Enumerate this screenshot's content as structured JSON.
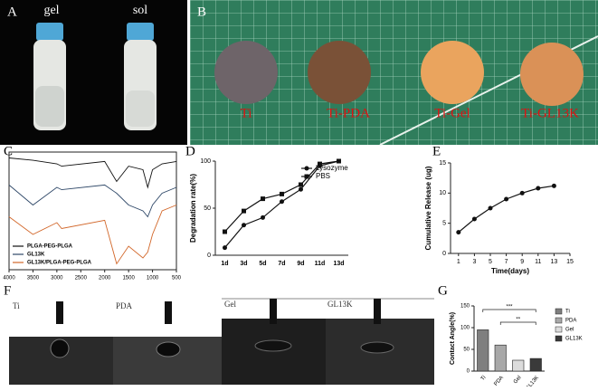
{
  "photos": {
    "A": {
      "label": "A",
      "captions": [
        "gel",
        "sol"
      ]
    },
    "B": {
      "label": "B",
      "captions": [
        "Ti",
        "Ti-PDA",
        "Ti-Gel",
        "Ti-GL13K"
      ]
    },
    "F": {
      "label": "F",
      "captions": [
        "Ti",
        "PDA",
        "Gel",
        "GL13K"
      ]
    }
  },
  "chart_data": [
    {
      "type": "line",
      "label": "C",
      "legend": "lower-left",
      "x": [
        4000,
        3500,
        3000,
        2900,
        2000,
        1750,
        1500,
        1200,
        1100,
        1000,
        800,
        500
      ],
      "xlim": [
        4000,
        500
      ],
      "xticks": [
        4000,
        3500,
        3000,
        2500,
        2000,
        1500,
        1000,
        500
      ],
      "ylim": [
        0,
        1
      ],
      "series": [
        {
          "name": "PLGA-PEG-PLGA",
          "color": "#111111",
          "values": [
            0.95,
            0.93,
            0.9,
            0.88,
            0.92,
            0.75,
            0.88,
            0.85,
            0.7,
            0.85,
            0.9,
            0.92
          ]
        },
        {
          "name": "GL13K",
          "color": "#2f4868",
          "values": [
            0.72,
            0.55,
            0.7,
            0.68,
            0.72,
            0.65,
            0.55,
            0.5,
            0.45,
            0.55,
            0.65,
            0.7
          ]
        },
        {
          "name": "GL13K/PLGA-PEG-PLGA",
          "color": "#d2672a",
          "values": [
            0.45,
            0.3,
            0.4,
            0.35,
            0.42,
            0.05,
            0.2,
            0.1,
            0.15,
            0.3,
            0.5,
            0.55
          ]
        }
      ]
    },
    {
      "type": "line",
      "label": "D",
      "legend": "upper-right",
      "ylabel": "Degradation rate(%)",
      "categories": [
        "1d",
        "3d",
        "5d",
        "7d",
        "9d",
        "11d",
        "13d"
      ],
      "ylim": [
        0,
        100
      ],
      "yticks": [
        0,
        50,
        100
      ],
      "series": [
        {
          "name": "Lysozyme",
          "color": "#111111",
          "marker": "circle",
          "values": [
            8,
            32,
            40,
            57,
            70,
            95,
            100
          ]
        },
        {
          "name": "PBS",
          "color": "#111111",
          "marker": "square",
          "values": [
            25,
            47,
            60,
            65,
            75,
            97,
            100
          ]
        }
      ]
    },
    {
      "type": "line",
      "label": "E",
      "ylabel": "Cumulative Release (ug)",
      "xlabel": "Time(days)",
      "x": [
        1,
        3,
        5,
        7,
        9,
        11,
        13
      ],
      "xlim": [
        0,
        15
      ],
      "xticks": [
        1,
        3,
        5,
        7,
        9,
        11,
        13,
        15
      ],
      "ylim": [
        0,
        15
      ],
      "yticks": [
        0,
        5,
        10,
        15
      ],
      "series": [
        {
          "color": "#111111",
          "marker": "circle",
          "values": [
            3.5,
            5.7,
            7.5,
            9,
            10,
            10.8,
            11.2
          ]
        }
      ]
    },
    {
      "type": "bar",
      "label": "G",
      "legend": "right",
      "ylabel": "Contact Angle(%)",
      "categories": [
        "Ti",
        "PDA",
        "Gel",
        "GL13K"
      ],
      "values": [
        95,
        60,
        25,
        29
      ],
      "colors": [
        "#7f7f7f",
        "#a8a8a8",
        "#dcdcdc",
        "#3a3a3a"
      ],
      "ylim": [
        0,
        150
      ],
      "yticks": [
        0,
        50,
        100,
        150
      ],
      "annotations": [
        "***",
        "**"
      ]
    }
  ]
}
